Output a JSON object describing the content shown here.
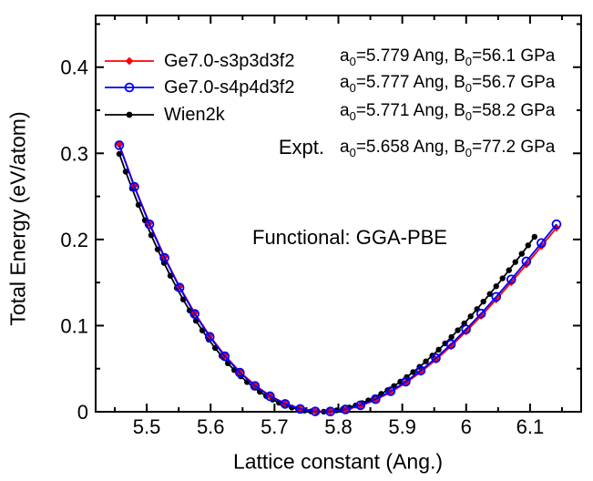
{
  "figure": {
    "xlabel": "Lattice constant (Ang.)",
    "ylabel": "Total Energy (eV/atom)",
    "functional_note": "Functional: GGA-PBE",
    "expt_label": "Expt.",
    "background_color": "#ffffff",
    "frame_color": "#000000"
  },
  "legend": {
    "items": [
      {
        "label": "Ge7.0-s3p3d3f2",
        "color": "#ff0000",
        "marker": "diamond"
      },
      {
        "label": "Ge7.0-s4p4d3f2",
        "color": "#0000ff",
        "marker": "open-circle"
      },
      {
        "label": "Wien2k",
        "color": "#000000",
        "marker": "circle"
      }
    ]
  },
  "annotations": {
    "rows": [
      {
        "a_prefix": "a",
        "a_sub": "0",
        "a_rest": "=5.779 Ang, ",
        "b_prefix": "B",
        "b_sub": "0",
        "b_rest": "=56.1 GPa"
      },
      {
        "a_prefix": "a",
        "a_sub": "0",
        "a_rest": "=5.777 Ang, ",
        "b_prefix": "B",
        "b_sub": "0",
        "b_rest": "=56.7 GPa"
      },
      {
        "a_prefix": "a",
        "a_sub": "0",
        "a_rest": "=5.771 Ang, ",
        "b_prefix": "B",
        "b_sub": "0",
        "b_rest": "=58.2 GPa"
      },
      {
        "a_prefix": "a",
        "a_sub": "0",
        "a_rest": "=5.658 Ang, ",
        "b_prefix": "B",
        "b_sub": "0",
        "b_rest": "=77.2 GPa"
      }
    ]
  },
  "chart_data": {
    "type": "line",
    "title": "",
    "xlabel": "Lattice constant (Ang.)",
    "ylabel": "Total Energy (eV/atom)",
    "xlim": [
      5.42,
      6.18
    ],
    "ylim": [
      0,
      0.46
    ],
    "grid": false,
    "legend_position": "upper-left-inside",
    "x_major_ticks": [
      5.5,
      5.6,
      5.7,
      5.8,
      5.9,
      6.0,
      6.1
    ],
    "x_tick_labels": [
      "5.5",
      "5.6",
      "5.7",
      "5.8",
      "5.9",
      "6",
      "6.1"
    ],
    "x_minor_ticks": [
      5.45,
      5.55,
      5.65,
      5.75,
      5.85,
      5.95,
      6.05,
      6.15
    ],
    "y_major_ticks": [
      0,
      0.1,
      0.2,
      0.3,
      0.4
    ],
    "y_tick_labels": [
      "0",
      "0.1",
      "0.2",
      "0.3",
      "0.4"
    ],
    "y_minor_ticks": [
      0.05,
      0.15,
      0.25,
      0.35,
      0.45
    ],
    "series": [
      {
        "name": "Wien2k",
        "color": "#000000",
        "marker": "circle",
        "a0": 5.771,
        "B0_GPa": 58.2,
        "x": [
          5.457,
          5.467,
          5.477,
          5.487,
          5.497,
          5.507,
          5.517,
          5.527,
          5.537,
          5.547,
          5.557,
          5.567,
          5.577,
          5.587,
          5.597,
          5.607,
          5.617,
          5.627,
          5.637,
          5.647,
          5.657,
          5.667,
          5.677,
          5.687,
          5.697,
          5.707,
          5.717,
          5.727,
          5.737,
          5.747,
          5.757,
          5.767,
          5.777,
          5.787,
          5.797,
          5.807,
          5.817,
          5.827,
          5.837,
          5.847,
          5.857,
          5.867,
          5.877,
          5.887,
          5.897,
          5.907,
          5.917,
          5.927,
          5.937,
          5.947,
          5.957,
          5.967,
          5.977,
          5.987,
          5.997,
          6.007,
          6.017,
          6.027,
          6.037,
          6.047,
          6.057,
          6.067,
          6.077,
          6.087,
          6.097,
          6.107
        ],
        "y": [
          0.2993,
          0.2787,
          0.2591,
          0.2402,
          0.2222,
          0.2049,
          0.1885,
          0.1728,
          0.1579,
          0.1437,
          0.1303,
          0.1176,
          0.1056,
          0.0944,
          0.0838,
          0.074,
          0.0648,
          0.0562,
          0.0484,
          0.0411,
          0.0345,
          0.0285,
          0.0231,
          0.0183,
          0.0141,
          0.0105,
          0.0074,
          0.0049,
          0.0029,
          0.0014,
          0.0005,
          0.0,
          0.0001,
          0.0006,
          0.0016,
          0.0031,
          0.005,
          0.0073,
          0.0101,
          0.0132,
          0.0168,
          0.0208,
          0.0251,
          0.0298,
          0.0349,
          0.0403,
          0.0461,
          0.0521,
          0.0585,
          0.0652,
          0.0721,
          0.0793,
          0.0868,
          0.0946,
          0.1026,
          0.1108,
          0.1192,
          0.1279,
          0.1367,
          0.1457,
          0.1549,
          0.1643,
          0.1738,
          0.1834,
          0.1932,
          0.2031
        ]
      },
      {
        "name": "Ge7.0-s3p3d3f2",
        "color": "#ff0000",
        "marker": "diamond",
        "a0": 5.779,
        "B0_GPa": 56.1,
        "x": [
          5.457,
          5.4806,
          5.5042,
          5.5278,
          5.5514,
          5.575,
          5.5986,
          5.6222,
          5.6458,
          5.6694,
          5.693,
          5.7166,
          5.7402,
          5.7638,
          5.7874,
          5.811,
          5.8346,
          5.8582,
          5.8818,
          5.9054,
          5.929,
          5.9526,
          5.9762,
          5.9998,
          6.0234,
          6.047,
          6.0706,
          6.0942,
          6.1178,
          6.1414
        ],
        "y": [
          0.3103,
          0.2623,
          0.2189,
          0.18,
          0.1453,
          0.1148,
          0.0882,
          0.0655,
          0.0464,
          0.0309,
          0.0187,
          0.0096,
          0.0037,
          0.0006,
          0.0002,
          0.0023,
          0.0069,
          0.0137,
          0.0227,
          0.0335,
          0.0461,
          0.0604,
          0.0761,
          0.0931,
          0.1112,
          0.1303,
          0.1503,
          0.1709,
          0.1921,
          0.2136
        ]
      },
      {
        "name": "Ge7.0-s4p4d3f2",
        "color": "#0000ff",
        "marker": "open-circle",
        "a0": 5.777,
        "B0_GPa": 56.7,
        "x": [
          5.457,
          5.4806,
          5.5042,
          5.5278,
          5.5514,
          5.575,
          5.5986,
          5.6222,
          5.6458,
          5.6694,
          5.693,
          5.7166,
          5.7402,
          5.7638,
          5.7874,
          5.811,
          5.8346,
          5.8582,
          5.8818,
          5.9054,
          5.929,
          5.9526,
          5.9762,
          5.9998,
          6.0234,
          6.047,
          6.0706,
          6.0942,
          6.1178,
          6.1414
        ],
        "y": [
          0.3094,
          0.2612,
          0.2177,
          0.1787,
          0.1441,
          0.1136,
          0.087,
          0.0644,
          0.0454,
          0.03,
          0.018,
          0.0091,
          0.0033,
          0.0004,
          0.0003,
          0.0027,
          0.0075,
          0.0146,
          0.0238,
          0.0349,
          0.0478,
          0.0623,
          0.0783,
          0.0956,
          0.114,
          0.1334,
          0.1536,
          0.1745,
          0.1959,
          0.2177
        ]
      }
    ],
    "expt": {
      "a0": 5.658,
      "B0_GPa": 77.2
    },
    "annotation": "Functional: GGA-PBE"
  }
}
